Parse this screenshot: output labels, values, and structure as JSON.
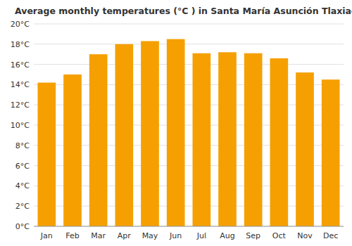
{
  "chart_data": {
    "type": "bar",
    "title": "Average monthly temperatures (°C ) in Santa María Asunción Tlaxiaco",
    "categories": [
      "Jan",
      "Feb",
      "Mar",
      "Apr",
      "May",
      "Jun",
      "Jul",
      "Aug",
      "Sep",
      "Oct",
      "Nov",
      "Dec"
    ],
    "values": [
      14.2,
      15.0,
      17.0,
      18.0,
      18.3,
      18.5,
      17.1,
      17.2,
      17.1,
      16.6,
      15.2,
      14.5
    ],
    "color": "#F5A000",
    "ylim": [
      0,
      20
    ],
    "yticks": [
      {
        "value": 0,
        "label": "0°C"
      },
      {
        "value": 2,
        "label": "2°C"
      },
      {
        "value": 4,
        "label": "4°C"
      },
      {
        "value": 6,
        "label": "6°C"
      },
      {
        "value": 8,
        "label": "8°C"
      },
      {
        "value": 10,
        "label": "10°C"
      },
      {
        "value": 12,
        "label": "12°C"
      },
      {
        "value": 14,
        "label": "14°C"
      },
      {
        "value": 16,
        "label": "16°C"
      },
      {
        "value": 18,
        "label": "18°C"
      },
      {
        "value": 20,
        "label": "20°C"
      }
    ],
    "grid": true
  }
}
